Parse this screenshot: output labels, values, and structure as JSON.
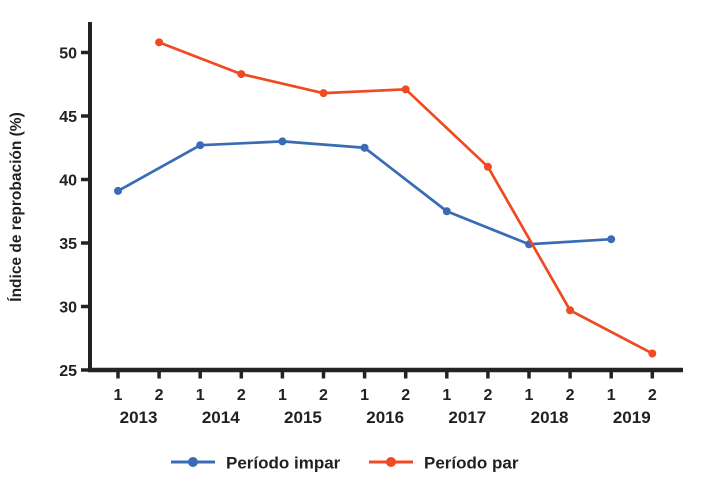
{
  "figure": {
    "background": "#ffffff"
  },
  "chart_data": {
    "type": "line",
    "title": "",
    "xlabel": "",
    "ylabel": "Índice de reprobación (%)",
    "grid": false,
    "legend_position": "bottom",
    "ylim": [
      25,
      52.5
    ],
    "y_ticks": [
      25,
      30,
      35,
      40,
      45,
      50
    ],
    "x_tick_labels": [
      "1",
      "2",
      "1",
      "2",
      "1",
      "2",
      "1",
      "2",
      "1",
      "2",
      "1",
      "2",
      "1",
      "2"
    ],
    "year_labels": [
      "2013",
      "2014",
      "2015",
      "2016",
      "2017",
      "2018",
      "2019"
    ],
    "categories": [
      "2013-1",
      "2013-2",
      "2014-1",
      "2014-2",
      "2015-1",
      "2015-2",
      "2016-1",
      "2016-2",
      "2017-1",
      "2017-2",
      "2018-1",
      "2018-2",
      "2019-1",
      "2019-2"
    ],
    "series": [
      {
        "name": "Período impar",
        "color": "#3a6cb5",
        "values": [
          39.1,
          null,
          42.7,
          null,
          43.0,
          null,
          42.5,
          null,
          37.5,
          null,
          34.9,
          null,
          35.3,
          null
        ]
      },
      {
        "name": "Período par",
        "color": "#ee4a23",
        "values": [
          null,
          50.8,
          null,
          48.3,
          null,
          46.8,
          null,
          47.1,
          null,
          41.0,
          null,
          29.7,
          null,
          26.3
        ]
      }
    ],
    "colors": {
      "axis": "#262223",
      "text": "#231f20",
      "background": "#ffffff"
    }
  }
}
